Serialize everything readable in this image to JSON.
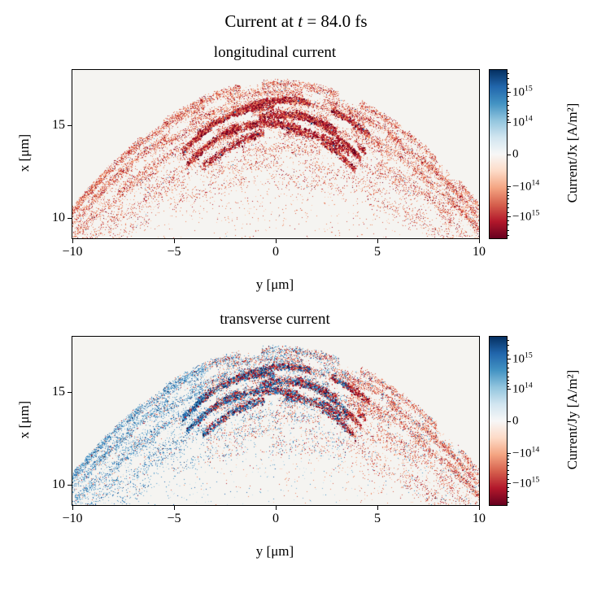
{
  "figure": {
    "title_pre": "Current at ",
    "title_var": "t",
    "title_post": " = 84.0 fs"
  },
  "render_common": {
    "dome_apex": 17.25,
    "dome_curv": 0.066,
    "gap_freq": 1.3,
    "gap_level": 0.78,
    "diffuse_n": 5200,
    "palette_neg": [
      "#67001f",
      "#b2182b",
      "#d6604d",
      "#ef8a62",
      "#fbc4af"
    ],
    "palette_pos": [
      "#053061",
      "#2166ac",
      "#4393c3",
      "#74add1",
      "#c3ddec"
    ],
    "weights": [
      0.05,
      0.2,
      0.34,
      0.28,
      0.13
    ],
    "weights_dark": [
      0.22,
      0.4,
      0.27,
      0.09,
      0.02
    ],
    "weights_diffuse": [
      0.0,
      0.06,
      0.2,
      0.38,
      0.36
    ],
    "arcs": [
      {
        "a": 17.25,
        "c": 0.068,
        "s": 10,
        "n": 2800,
        "t": 0.3,
        "k": 0.015,
        "d": false
      },
      {
        "a": 16.78,
        "c": 0.066,
        "s": 10,
        "n": 2500,
        "t": 0.3,
        "k": -0.02,
        "d": false
      },
      {
        "a": 16.3,
        "c": 0.064,
        "s": 10,
        "n": 2300,
        "t": 0.32,
        "k": 0.01,
        "d": false
      },
      {
        "a": 15.75,
        "c": 0.062,
        "s": 10,
        "n": 2100,
        "t": 0.34,
        "k": -0.015,
        "d": false
      },
      {
        "a": 15.15,
        "c": 0.06,
        "s": 10,
        "n": 1900,
        "t": 0.36,
        "k": 0.02,
        "d": false
      },
      {
        "a": 14.5,
        "c": 0.058,
        "s": 10,
        "n": 1600,
        "t": 0.4,
        "k": -0.01,
        "d": false
      },
      {
        "a": 13.75,
        "c": 0.056,
        "s": 10,
        "n": 1300,
        "t": 0.45,
        "k": 0.015,
        "d": false
      },
      {
        "a": 12.95,
        "c": 0.054,
        "s": 10,
        "n": 1000,
        "t": 0.5,
        "k": -0.02,
        "d": false
      },
      {
        "a": 12.1,
        "c": 0.052,
        "s": 10,
        "n": 800,
        "t": 0.55,
        "k": 0.01,
        "d": false
      },
      {
        "a": 16.35,
        "c": 0.11,
        "s": 4.6,
        "n": 2400,
        "t": 0.22,
        "k": 0.1,
        "d": true
      },
      {
        "a": 15.95,
        "c": 0.13,
        "s": 4.2,
        "n": 2200,
        "t": 0.22,
        "k": -0.12,
        "d": true
      },
      {
        "a": 15.55,
        "c": 0.12,
        "s": 4.4,
        "n": 2100,
        "t": 0.24,
        "k": 0.08,
        "d": true
      },
      {
        "a": 15.1,
        "c": 0.14,
        "s": 3.9,
        "n": 1800,
        "t": 0.26,
        "k": -0.1,
        "d": true
      },
      {
        "a": 14.7,
        "c": 0.12,
        "s": 3.6,
        "n": 1400,
        "t": 0.28,
        "k": 0.12,
        "d": true
      }
    ]
  },
  "chart_data": [
    {
      "type": "scatter",
      "title": "longitudinal current",
      "xlabel": "y [μm]",
      "ylabel": "x [μm]",
      "xlim": [
        -10,
        10
      ],
      "ylim": [
        8.9,
        18.0
      ],
      "xticks": [
        -10,
        -5,
        0,
        5,
        10
      ],
      "xtick_labels": [
        "−10",
        "−5",
        "0",
        "5",
        "10"
      ],
      "yticks": [
        15,
        10
      ],
      "ytick_labels": [
        "15",
        "10"
      ],
      "grid": false,
      "colorbar": {
        "label": "Current/Jx [A/m²]",
        "scale": "symlog",
        "cmap": "RdBu",
        "tick_labels": [
          "10^15",
          "10^14",
          "0",
          "−10^14",
          "−10^15"
        ],
        "tick_pos": [
          0.13,
          0.31,
          0.5,
          0.69,
          0.87
        ],
        "minor_tick_pos": [
          0.02,
          0.05,
          0.08,
          0.105,
          0.155,
          0.185,
          0.21,
          0.235,
          0.255,
          0.275,
          0.295,
          0.705,
          0.725,
          0.745,
          0.765,
          0.79,
          0.815,
          0.845,
          0.895,
          0.92,
          0.95,
          0.98
        ],
        "colors_bottom_to_top": [
          "#67001f",
          "#b2182b",
          "#d6604d",
          "#f4a582",
          "#fddbc7",
          "#f7f7f7",
          "#d1e5f0",
          "#92c5de",
          "#4393c3",
          "#2166ac",
          "#053061"
        ]
      },
      "annotation": "Predominantly negative (red) longitudinal current Jx in dome-shaped shell arcs spanning x≈10–17 μm over y≈−10…10 μm; densest dark-red core near x≈14.5–16.5 μm, |y|<5 μm",
      "render": {
        "seed": 1337,
        "bg": "#f5f4f1",
        "mode": "mono",
        "opposite_frac": 0.012
      }
    },
    {
      "type": "scatter",
      "title": "transverse current",
      "xlabel": "y [μm]",
      "ylabel": "x [μm]",
      "xlim": [
        -10,
        10
      ],
      "ylim": [
        8.9,
        18.0
      ],
      "xticks": [
        -10,
        -5,
        0,
        5,
        10
      ],
      "xtick_labels": [
        "−10",
        "−5",
        "0",
        "5",
        "10"
      ],
      "yticks": [
        15,
        10
      ],
      "ytick_labels": [
        "15",
        "10"
      ],
      "grid": false,
      "colorbar": {
        "label": "Current/Jy [A/m²]",
        "scale": "symlog",
        "cmap": "RdBu",
        "tick_labels": [
          "10^15",
          "10^14",
          "0",
          "−10^14",
          "−10^15"
        ],
        "tick_pos": [
          0.13,
          0.31,
          0.5,
          0.69,
          0.87
        ],
        "minor_tick_pos": [
          0.02,
          0.05,
          0.08,
          0.105,
          0.155,
          0.185,
          0.21,
          0.235,
          0.255,
          0.275,
          0.295,
          0.705,
          0.725,
          0.745,
          0.765,
          0.79,
          0.815,
          0.845,
          0.895,
          0.92,
          0.95,
          0.98
        ],
        "colors_bottom_to_top": [
          "#67001f",
          "#b2182b",
          "#d6604d",
          "#f4a582",
          "#fddbc7",
          "#f7f7f7",
          "#d1e5f0",
          "#92c5de",
          "#4393c3",
          "#2166ac",
          "#053061"
        ]
      },
      "annotation": "Antisymmetric transverse current Jy: positive (blue) arcs on left half (y<0), negative (red) arcs on right half (y>0), mixed red/blue streaks near the dome top around y≈0",
      "render": {
        "seed": 2024,
        "bg": "#f5f4f1",
        "mode": "bipolar",
        "mix_halfwidth": 3.5,
        "mix_prob": 0.45,
        "far_mix_prob": 0.1
      }
    }
  ]
}
